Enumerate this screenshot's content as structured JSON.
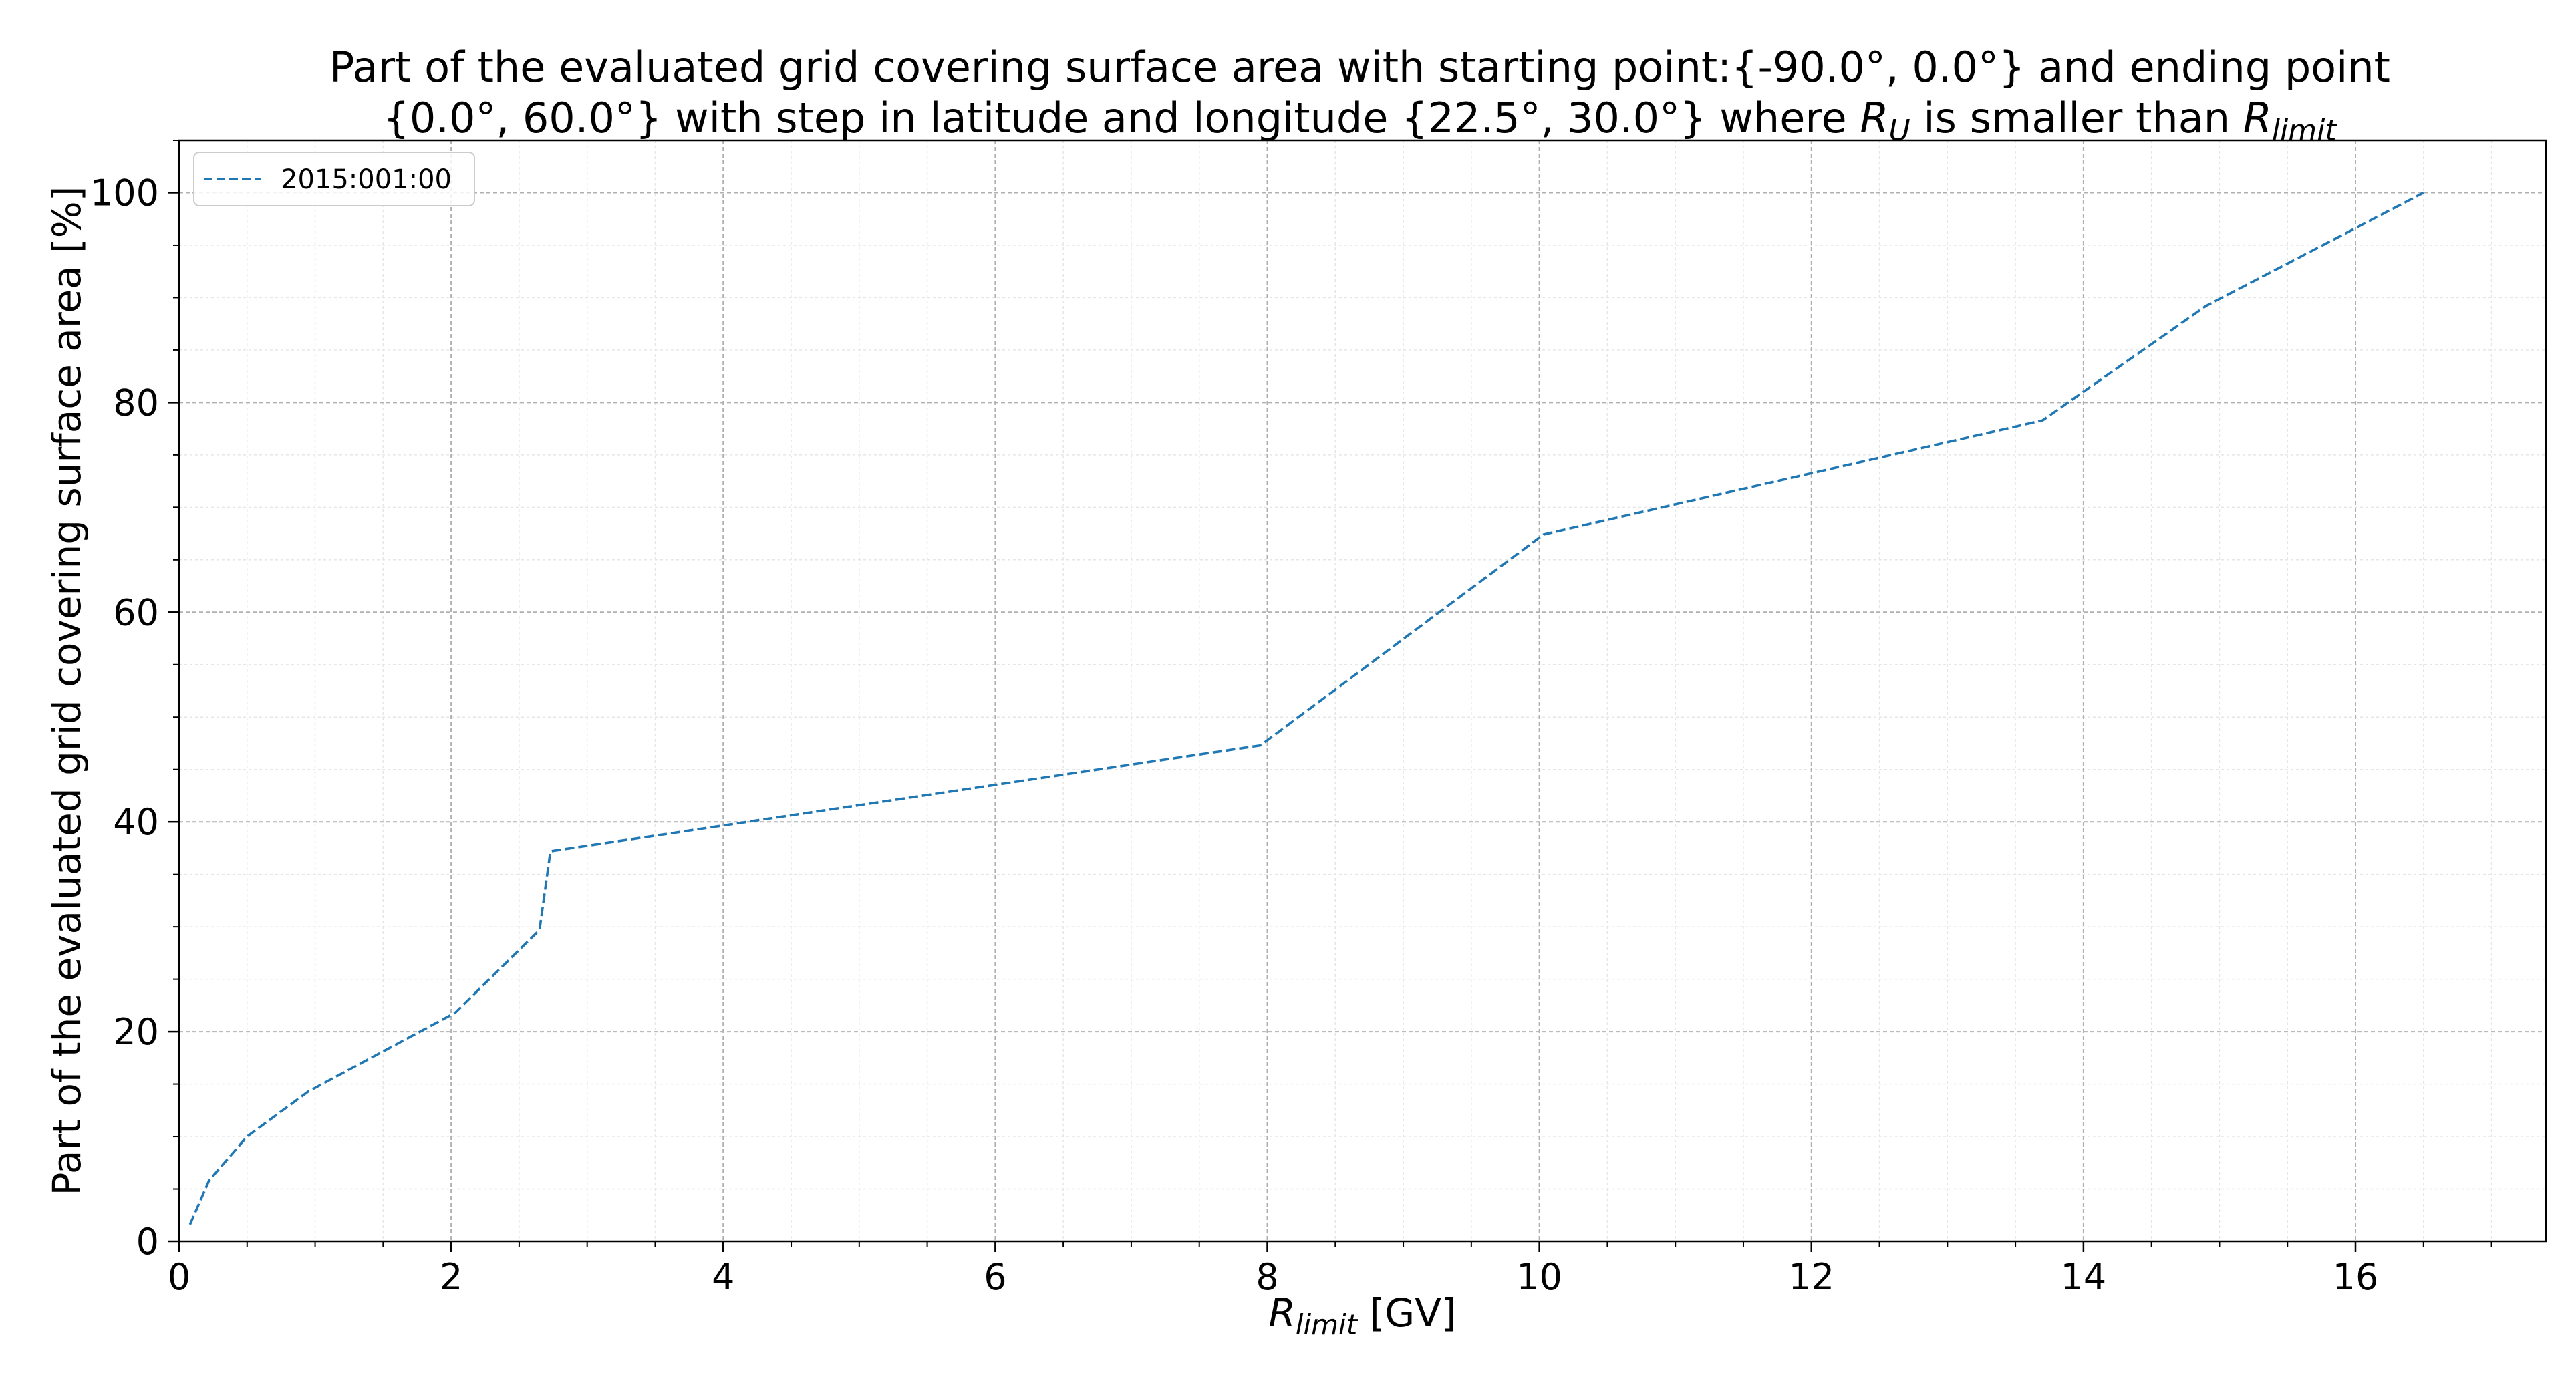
{
  "chart_data": {
    "type": "line",
    "title": {
      "line1": "Part of the evaluated grid covering surface area with starting point:{-90.0°, 0.0°} and ending point",
      "line2_prefix": "{0.0°, 60.0°} with step in latitude and longitude {22.5°, 30.0°} where ",
      "line2_r": "R",
      "line2_r_sub": "U",
      "line2_middle": " is smaller than ",
      "line2_r2": "R",
      "line2_r2_sub": "limit"
    },
    "xlabel": {
      "symbol": "R",
      "subscript": "limit",
      "unit": " [GV]"
    },
    "ylabel": "Part of the evaluated grid covering surface area  [%]",
    "xlim": [
      0,
      17.4
    ],
    "ylim": [
      0,
      105
    ],
    "x_ticks": [
      0,
      2,
      4,
      6,
      8,
      10,
      12,
      14,
      16
    ],
    "y_ticks": [
      0,
      20,
      40,
      60,
      80,
      100
    ],
    "grid": true,
    "legend_position": "upper-left",
    "series": [
      {
        "name": "2015:001:00",
        "color": "#1f77b4",
        "line_style": "dashed",
        "x": [
          0.08,
          0.22,
          0.5,
          0.95,
          2.03,
          2.65,
          2.73,
          7.95,
          10.03,
          13.7,
          14.9,
          16.5
        ],
        "y": [
          1.6,
          5.8,
          10.0,
          14.3,
          21.8,
          29.7,
          37.2,
          47.3,
          67.4,
          78.3,
          89.2,
          100.0
        ]
      }
    ]
  }
}
